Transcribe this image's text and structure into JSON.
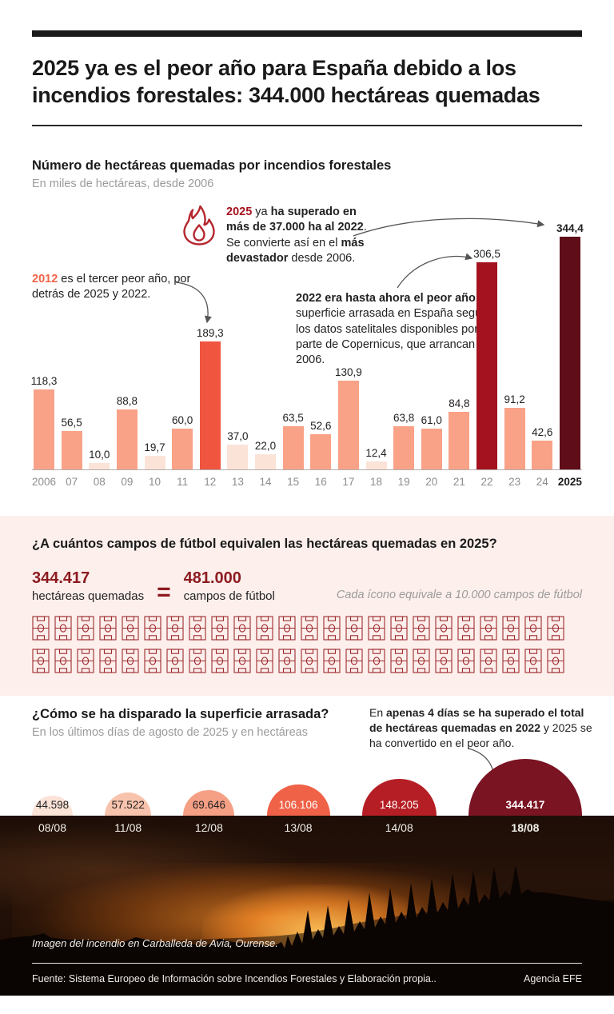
{
  "header": {
    "title": "2025 ya es el peor año para España debido a los incendios forestales: 344.000 hectáreas quemadas"
  },
  "bar_section": {
    "title": "Número de hectáreas quemadas por incendios forestales",
    "subtitle": "En miles de hectáreas, desde 2006"
  },
  "annotations": {
    "a2025": {
      "segments": [
        {
          "t": "2025",
          "b": true,
          "c": "#A6121E"
        },
        {
          "t": " ya "
        },
        {
          "t": "ha superado en más de 37.000 ha al 2022",
          "b": true
        },
        {
          "t": ". Se convierte así en el "
        },
        {
          "t": "más devastador",
          "b": true
        },
        {
          "t": " desde 2006."
        }
      ]
    },
    "a2012": {
      "segments": [
        {
          "t": "2012",
          "b": true,
          "c": "#F0654A"
        },
        {
          "t": " es el tercer peor año, por detrás de 2025 y 2022."
        }
      ]
    },
    "a2022": {
      "segments": [
        {
          "t": "2022 era hasta ahora el peor año",
          "b": true
        },
        {
          "t": " en superficie arrasada en España según los datos satelitales disponibles por parte de Copernicus, que arrancan en 2006."
        }
      ]
    },
    "a4days": {
      "segments": [
        {
          "t": "En "
        },
        {
          "t": "apenas 4 días se ha superado el total de hectáreas quemadas en 2022",
          "b": true
        },
        {
          "t": " y 2025 se ha convertido en el peor año."
        }
      ]
    }
  },
  "football_section": {
    "title": "¿A cuántos campos de fútbol equivalen las hectáreas quemadas en 2025?",
    "stat1_value": "344.417",
    "stat1_label": "hectáreas quemadas",
    "equals": "=",
    "stat2_value": "481.000",
    "stat2_label": "campos de fútbol",
    "note": "Cada ícono equivale a 10.000 campos de fútbol"
  },
  "surface_section": {
    "title": "¿Cómo se ha disparado la superficie arrasada?",
    "subtitle": "En los últimos días de agosto de 2025 y en hectáreas"
  },
  "photo": {
    "caption": "Imagen del incendio en Carballeda de Avia, Ourense.",
    "source": "Fuente: Sistema Europeo de Información sobre Incendios Forestales y Elaboración propia..",
    "credit": "Agencia EFE"
  },
  "colors": {
    "accent_dark_red": "#8C1A1F",
    "bar_default": "#F9A287",
    "bar_pale": "#FBE3D8",
    "bar_2012": "#F05540",
    "bar_2022": "#A4121F",
    "bar_2025": "#5F0D18",
    "field_icon_stroke": "#9C2B30",
    "flame_stroke": "#B5272E"
  },
  "chart_data": [
    {
      "type": "bar",
      "title": "Número de hectáreas quemadas por incendios forestales",
      "ylabel": "miles de hectáreas",
      "categories": [
        "2006",
        "07",
        "08",
        "09",
        "10",
        "11",
        "12",
        "13",
        "14",
        "15",
        "16",
        "17",
        "18",
        "19",
        "20",
        "21",
        "22",
        "23",
        "24",
        "2025"
      ],
      "values": [
        118.3,
        56.5,
        10.0,
        88.8,
        19.7,
        60.0,
        189.3,
        37.0,
        22.0,
        63.5,
        52.6,
        130.9,
        12.4,
        63.8,
        61.0,
        84.8,
        306.5,
        91.2,
        42.6,
        344.4
      ],
      "value_labels": [
        "118,3",
        "56,5",
        "10,0",
        "88,8",
        "19,7",
        "60,0",
        "189,3",
        "37,0",
        "22,0",
        "63,5",
        "52,6",
        "130,9",
        "12,4",
        "63,8",
        "61,0",
        "84,8",
        "306,5",
        "91,2",
        "42,6",
        "344,4"
      ],
      "bar_colors": [
        "#F9A287",
        "#F9A287",
        "#FBE3D8",
        "#F9A287",
        "#FBE3D8",
        "#F9A287",
        "#F05540",
        "#FBE3D8",
        "#FBE3D8",
        "#F9A287",
        "#F9A287",
        "#F9A287",
        "#FBE3D8",
        "#F9A287",
        "#F9A287",
        "#F9A287",
        "#A4121F",
        "#F9A287",
        "#F9A287",
        "#5F0D18"
      ],
      "emphasis_category": "2025",
      "ylim": [
        0,
        344.4
      ],
      "grid": false,
      "legend": "none"
    },
    {
      "type": "pictogram",
      "icon": "football-field-icon",
      "icon_count": 48,
      "icons_per_row": 24,
      "unit_per_icon": 10000,
      "note": "Cada ícono equivale a 10.000 campos de fútbol",
      "hectares": 344417,
      "fields": 481000
    },
    {
      "type": "proportional-semicircles",
      "x": [
        "08/08",
        "11/08",
        "12/08",
        "13/08",
        "14/08",
        "18/08"
      ],
      "values": [
        44598,
        57522,
        69646,
        106106,
        148205,
        344417
      ],
      "value_labels": [
        "44.598",
        "57.522",
        "69.646",
        "106.106",
        "148.205",
        "344.417"
      ],
      "colors": [
        "#FBE3D8",
        "#F8C3AC",
        "#F59F85",
        "#EF6248",
        "#B51E24",
        "#7A1322"
      ],
      "label_colors": [
        "#222222",
        "#222222",
        "#222222",
        "#FFFFFF",
        "#FFFFFF",
        "#FFFFFF"
      ],
      "emphasis_index": 5
    }
  ]
}
